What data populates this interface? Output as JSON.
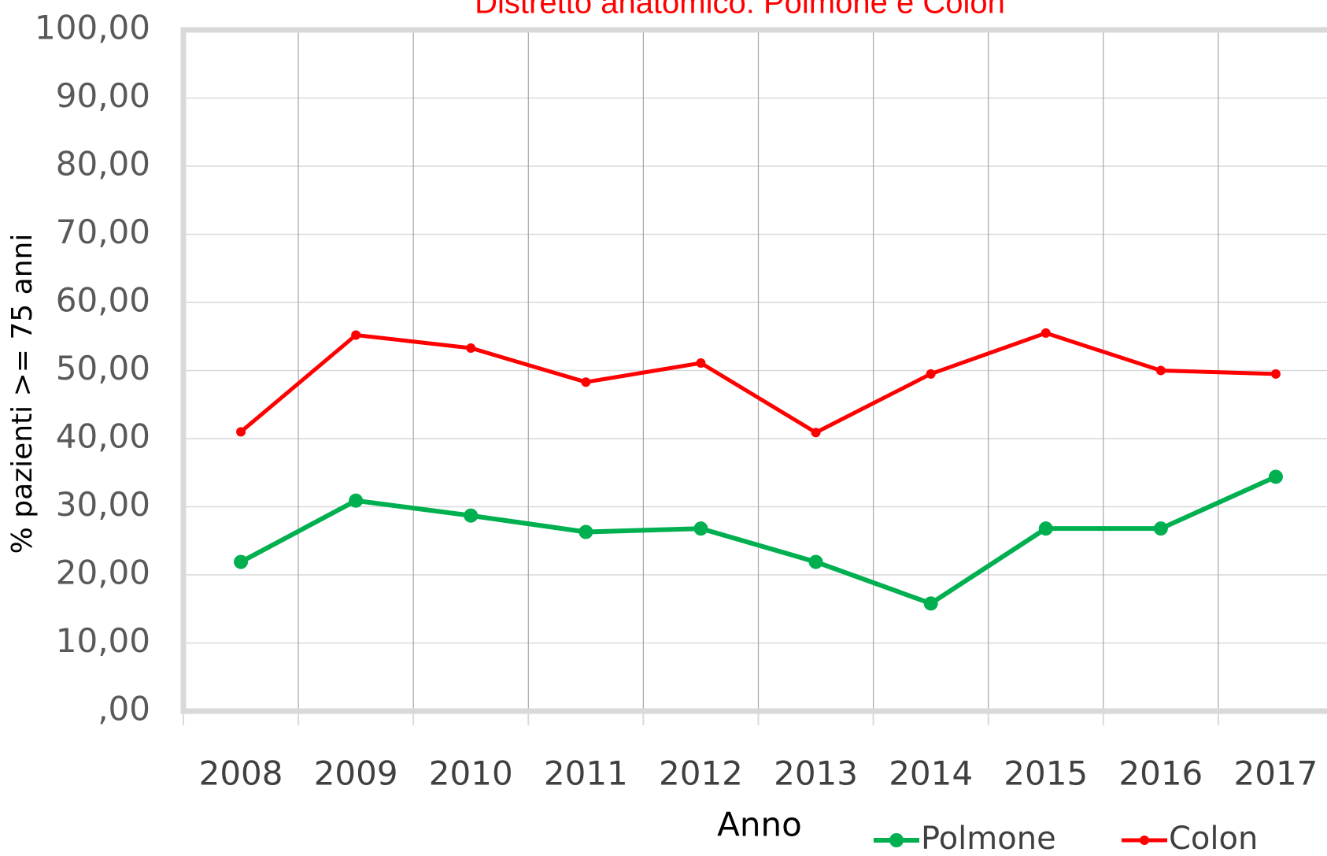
{
  "chart_data": {
    "type": "line",
    "title": "Distretto anatomico: Polmone e Colon",
    "x_label": "Anno",
    "y_label": "% pazienti >= 75 anni",
    "categories": [
      "2008",
      "2009",
      "2010",
      "2011",
      "2012",
      "2013",
      "2014",
      "2015",
      "2016",
      "2017"
    ],
    "series": [
      {
        "name": "Polmone",
        "color": "#00b050",
        "values": [
          21.9,
          30.9,
          28.7,
          26.3,
          26.8,
          21.9,
          15.8,
          26.8,
          26.8,
          34.4
        ]
      },
      {
        "name": "Colon",
        "color": "#ff0000",
        "values": [
          41.0,
          55.2,
          53.3,
          48.3,
          51.1,
          40.9,
          49.5,
          55.5,
          50.0,
          49.5
        ]
      }
    ],
    "ylim": [
      0,
      100
    ],
    "yticks": [
      {
        "value": 0,
        "label": ",00"
      },
      {
        "value": 10,
        "label": "10,00"
      },
      {
        "value": 20,
        "label": "20,00"
      },
      {
        "value": 30,
        "label": "30,00"
      },
      {
        "value": 40,
        "label": "40,00"
      },
      {
        "value": 50,
        "label": "50,00"
      },
      {
        "value": 60,
        "label": "60,00"
      },
      {
        "value": 70,
        "label": "70,00"
      },
      {
        "value": 80,
        "label": "80,00"
      },
      {
        "value": 90,
        "label": "90,00"
      },
      {
        "value": 100,
        "label": "100,00"
      }
    ],
    "grid": true,
    "legend": "bottom-right"
  }
}
